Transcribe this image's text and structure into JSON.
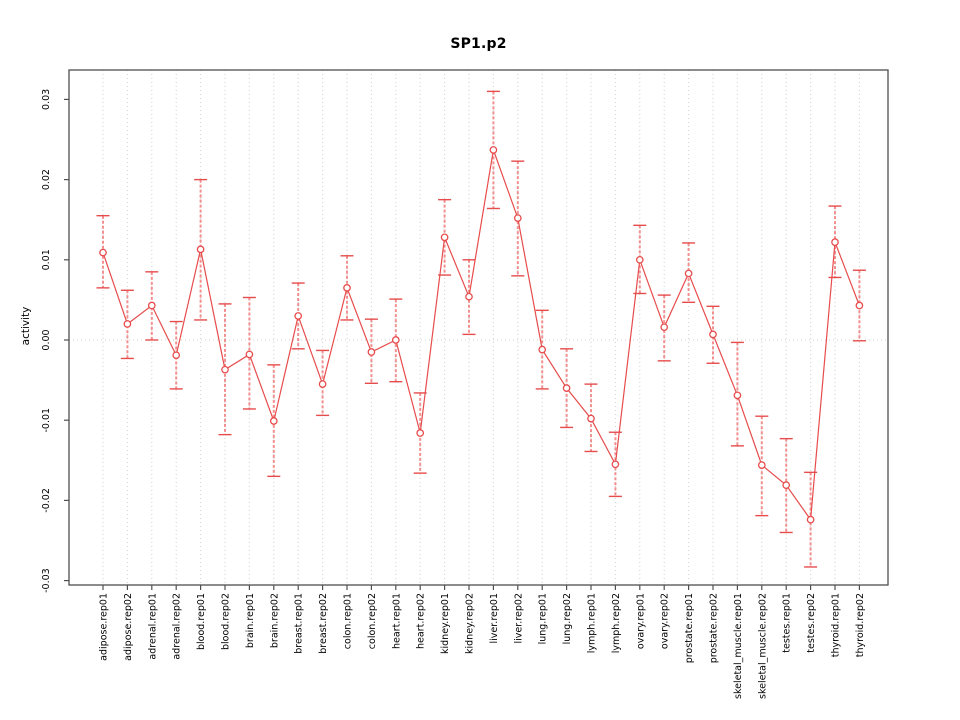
{
  "chart_data": {
    "type": "line",
    "subtype": "error-bar-line-plot",
    "title": "SP1.p2",
    "xlabel": "",
    "ylabel": "activity",
    "ylim": [
      -0.031,
      0.032
    ],
    "yticks": [
      0.03,
      0.02,
      0.01,
      0.0,
      -0.01,
      -0.02,
      -0.03
    ],
    "ytick_labels": [
      "0.03",
      "0.02",
      "0.01",
      "0.00",
      "-0.01",
      "-0.02",
      "-0.03"
    ],
    "grid": "vertical-dotted-per-category-plus-zero-line",
    "legend": "none",
    "marker": "open-circle",
    "categories": [
      "adipose.rep01",
      "adipose.rep02",
      "adrenal.rep01",
      "adrenal.rep02",
      "blood.rep01",
      "blood.rep02",
      "brain.rep01",
      "brain.rep02",
      "breast.rep01",
      "breast.rep02",
      "colon.rep01",
      "colon.rep02",
      "heart.rep01",
      "heart.rep02",
      "kidney.rep01",
      "kidney.rep02",
      "liver.rep01",
      "liver.rep02",
      "lung.rep01",
      "lung.rep02",
      "lymph.rep01",
      "lymph.rep02",
      "ovary.rep01",
      "ovary.rep02",
      "prostate.rep01",
      "prostate.rep02",
      "skeletal_muscle.rep01",
      "skeletal_muscle.rep02",
      "testes.rep01",
      "testes.rep02",
      "thyroid.rep01",
      "thyroid.rep02"
    ],
    "series": [
      {
        "name": "activity",
        "values": [
          0.0109,
          0.002,
          0.0043,
          -0.0019,
          0.0113,
          -0.0037,
          -0.0018,
          -0.0101,
          0.003,
          -0.0055,
          0.0065,
          -0.0015,
          0.0,
          -0.0116,
          0.0128,
          0.0054,
          0.0237,
          0.0152,
          -0.0012,
          -0.006,
          -0.0098,
          -0.0155,
          0.01,
          0.0016,
          0.0083,
          0.0007,
          -0.0069,
          -0.0156,
          -0.0181,
          -0.0224,
          0.0122,
          0.0043
        ],
        "upper": [
          0.0155,
          0.0062,
          0.0085,
          0.0023,
          0.02,
          0.0045,
          0.0053,
          -0.0031,
          0.0071,
          -0.0013,
          0.0105,
          0.0026,
          0.0051,
          -0.0066,
          0.0175,
          0.01,
          0.031,
          0.0223,
          0.0037,
          -0.0011,
          -0.0055,
          -0.0115,
          0.0143,
          0.0056,
          0.0121,
          0.0042,
          -0.0003,
          -0.0095,
          -0.0123,
          -0.0165,
          0.0167,
          0.0087
        ],
        "lower": [
          0.0065,
          -0.0023,
          0.0,
          -0.0061,
          0.0025,
          -0.0118,
          -0.0086,
          -0.017,
          -0.0011,
          -0.0094,
          0.0025,
          -0.0054,
          -0.0052,
          -0.0166,
          0.0081,
          0.0007,
          0.0164,
          0.008,
          -0.0061,
          -0.0109,
          -0.0139,
          -0.0195,
          0.0058,
          -0.0026,
          0.0047,
          -0.0029,
          -0.0132,
          -0.0219,
          -0.024,
          -0.0283,
          0.0078,
          -0.0001
        ]
      }
    ],
    "colors": {
      "series": "#e74c4c",
      "error_bar": "#f29090",
      "grid": "#cfcfcf",
      "zero_line": "#d4cfc8",
      "box": "#4f4f4f",
      "tick": "#4f4f4f",
      "text": "#000000"
    }
  }
}
